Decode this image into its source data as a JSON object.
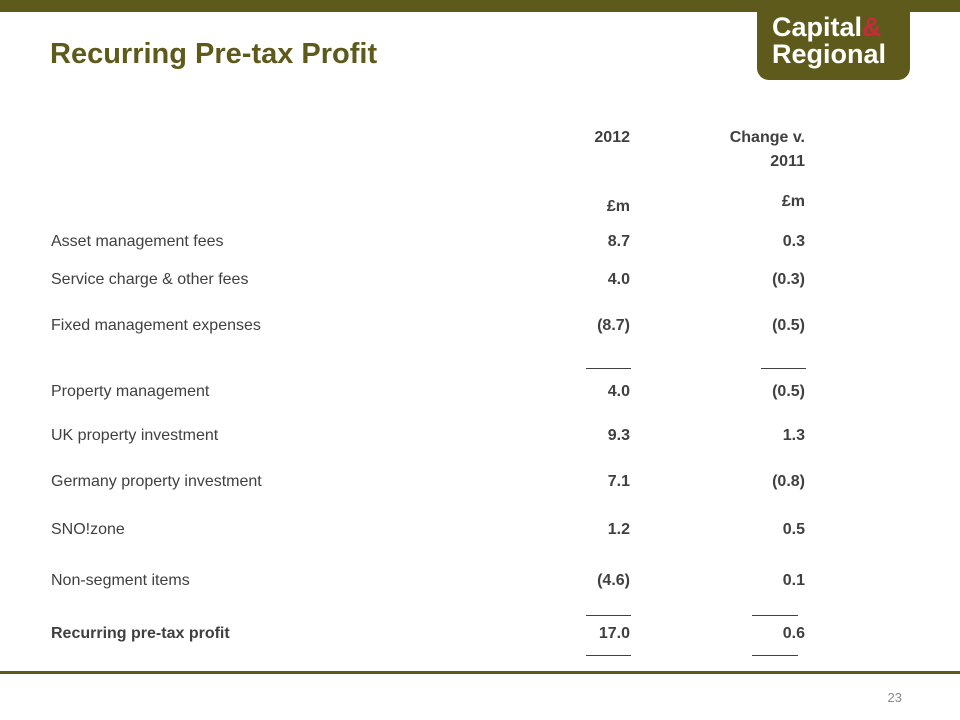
{
  "header": {
    "title": "Recurring Pre-tax Profit"
  },
  "logo": {
    "line1_text": "Capital",
    "line1_amp": "&",
    "line2_text": "Regional"
  },
  "table": {
    "columns": [
      {
        "heading_line1": "2012",
        "heading_line2": "",
        "unit": "£m"
      },
      {
        "heading_line1": "Change v.",
        "heading_line2": "2011",
        "unit": "£m"
      }
    ],
    "rows": [
      {
        "label": "Asset management fees",
        "v2012": "8.7",
        "change": "0.3"
      },
      {
        "label": "Service charge & other fees",
        "v2012": "4.0",
        "change": "(0.3)"
      },
      {
        "label": "Fixed management expenses",
        "v2012": "(8.7)",
        "change": "(0.5)"
      },
      {
        "label": "Property management",
        "v2012": "4.0",
        "change": "(0.5)"
      },
      {
        "label": "UK property investment",
        "v2012": "9.3",
        "change": "1.3"
      },
      {
        "label": "Germany property investment",
        "v2012": "7.1",
        "change": "(0.8)"
      },
      {
        "label": "SNO!zone",
        "v2012": "1.2",
        "change": "0.5"
      },
      {
        "label": "Non-segment items",
        "v2012": "(4.6)",
        "change": "0.1"
      },
      {
        "label": "Recurring pre-tax profit",
        "v2012": "17.0",
        "change": "0.6"
      }
    ]
  },
  "footer": {
    "page_number": "23"
  },
  "colors": {
    "brand_olive": "#5e5a1c",
    "brand_red": "#c9293a",
    "text_dark": "#404040"
  }
}
